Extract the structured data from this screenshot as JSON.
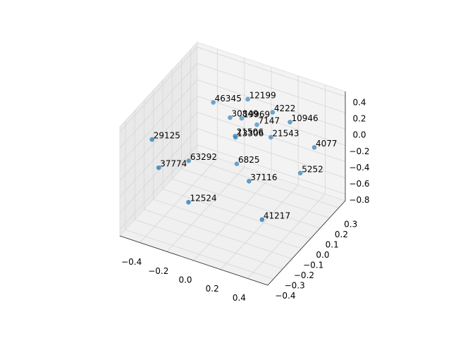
{
  "chart_data": {
    "type": "scatter",
    "xlim": [
      -0.55,
      0.55
    ],
    "ylim": [
      -0.46,
      0.37
    ],
    "zlim": [
      -0.88,
      0.46
    ],
    "xticks": [
      {
        "value": -0.4,
        "label": "−0.4"
      },
      {
        "value": -0.2,
        "label": "−0.2"
      },
      {
        "value": 0,
        "label": "0.0"
      },
      0.2,
      0.4
    ],
    "yticks": [
      {
        "value": -0.4,
        "label": "−0.4"
      },
      {
        "value": -0.3,
        "label": "−0.3"
      },
      {
        "value": -0.2,
        "label": "−0.2"
      },
      {
        "value": -0.1,
        "label": "−0.1"
      },
      {
        "value": 0,
        "label": "0.0"
      },
      0.1,
      0.2,
      0.3
    ],
    "zticks": [
      {
        "value": -0.8,
        "label": "−0.8"
      },
      {
        "value": -0.6,
        "label": "−0.6"
      },
      {
        "value": -0.4,
        "label": "−0.4"
      },
      {
        "value": -0.2,
        "label": "−0.2"
      },
      {
        "value": 0,
        "label": "0.0"
      },
      0.2,
      0.4
    ],
    "grid": true,
    "series": [
      {
        "color": "#1f77b4",
        "x": [
          -0.23,
          -0.05,
          -0.14,
          -0.13,
          0.1,
          0.25,
          -0.01,
          -0.13,
          -0.12,
          0.08,
          -0.47,
          0.41,
          -0.35,
          -0.4,
          -0.09,
          0.32,
          0.07,
          -0.22,
          0.23
        ],
        "y": [
          0.08,
          0.19,
          0.13,
          0.24,
          0.24,
          0.21,
          0.23,
          0.17,
          0.16,
          0.25,
          -0.23,
          0.24,
          -0.01,
          -0.26,
          0.13,
          0.22,
          0.03,
          -0.2,
          -0.06
        ],
        "z": [
          0.26,
          0.26,
          0.06,
          -0.08,
          0.12,
          0.12,
          -0.08,
          -0.21,
          -0.21,
          -0.21,
          0.06,
          -0.14,
          -0.41,
          -0.21,
          -0.48,
          -0.48,
          -0.48,
          -0.61,
          -0.75
        ],
        "labels": [
          "46345",
          "12199",
          "30849",
          "19969",
          "4222",
          "10946",
          "7147",
          "21506",
          "13306",
          "21543",
          "29125",
          "4077",
          "63292",
          "37774",
          "6825",
          "5252",
          "37116",
          "12524",
          "41217"
        ]
      }
    ]
  }
}
